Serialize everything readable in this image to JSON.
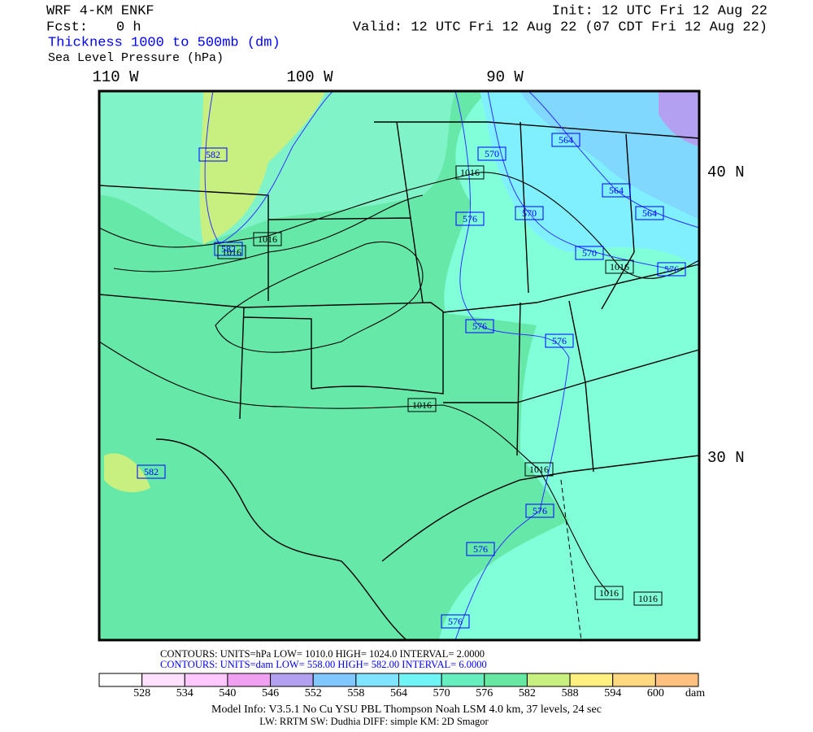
{
  "header": {
    "model": "WRF 4-KM ENKF",
    "fcst_label": "Fcst:",
    "fcst_value": "0 h",
    "init": "Init: 12 UTC Fri 12 Aug 22",
    "valid": "Valid: 12 UTC Fri 12 Aug 22 (07 CDT Fri 12 Aug 22)",
    "field_thickness": "Thickness 1000 to 500mb (dm)",
    "field_pressure": "Sea Level Pressure (hPa)"
  },
  "map": {
    "longitude_labels": [
      "110 W",
      "100 W",
      "90 W"
    ],
    "latitude_labels": [
      "40 N",
      "30 N"
    ],
    "pressure_labels": [
      1016,
      1016,
      1016,
      1016,
      1016,
      1016,
      1016,
      1016
    ],
    "thickness_labels": [
      582,
      582,
      570,
      564,
      564,
      564,
      576,
      570,
      570,
      576,
      576,
      576,
      582,
      576,
      576,
      576
    ]
  },
  "contour_info": {
    "pressure": "CONTOURS:  UNITS=hPa  LOW=   1010.0      HIGH=   1024.0      INTERVAL=     2.0000",
    "thickness": "CONTOURS:  UNITS=dam  LOW=   558.00      HIGH=   582.00      INTERVAL=     6.0000"
  },
  "colorbar": {
    "colors": [
      "#ffffff",
      "#ffe0ff",
      "#ffc8ff",
      "#f0a0f0",
      "#b4a0f0",
      "#80c8ff",
      "#80e4ff",
      "#70f4f4",
      "#66eebe",
      "#66e8a0",
      "#c8f080",
      "#fff080",
      "#ffd880",
      "#ffc080"
    ],
    "labels": [
      528,
      534,
      540,
      546,
      552,
      558,
      564,
      570,
      576,
      582,
      588,
      594,
      600
    ],
    "unit": "dam"
  },
  "footer": {
    "line1": "Model Info: V3.5.1    No Cu    YSU PBL  Thompson      Noah LSM  4.0 km,  37 levels,   24 sec",
    "line2": "LW: RRTM  SW: Dudhia  DIFF: simple  KM: 2D Smagor"
  }
}
